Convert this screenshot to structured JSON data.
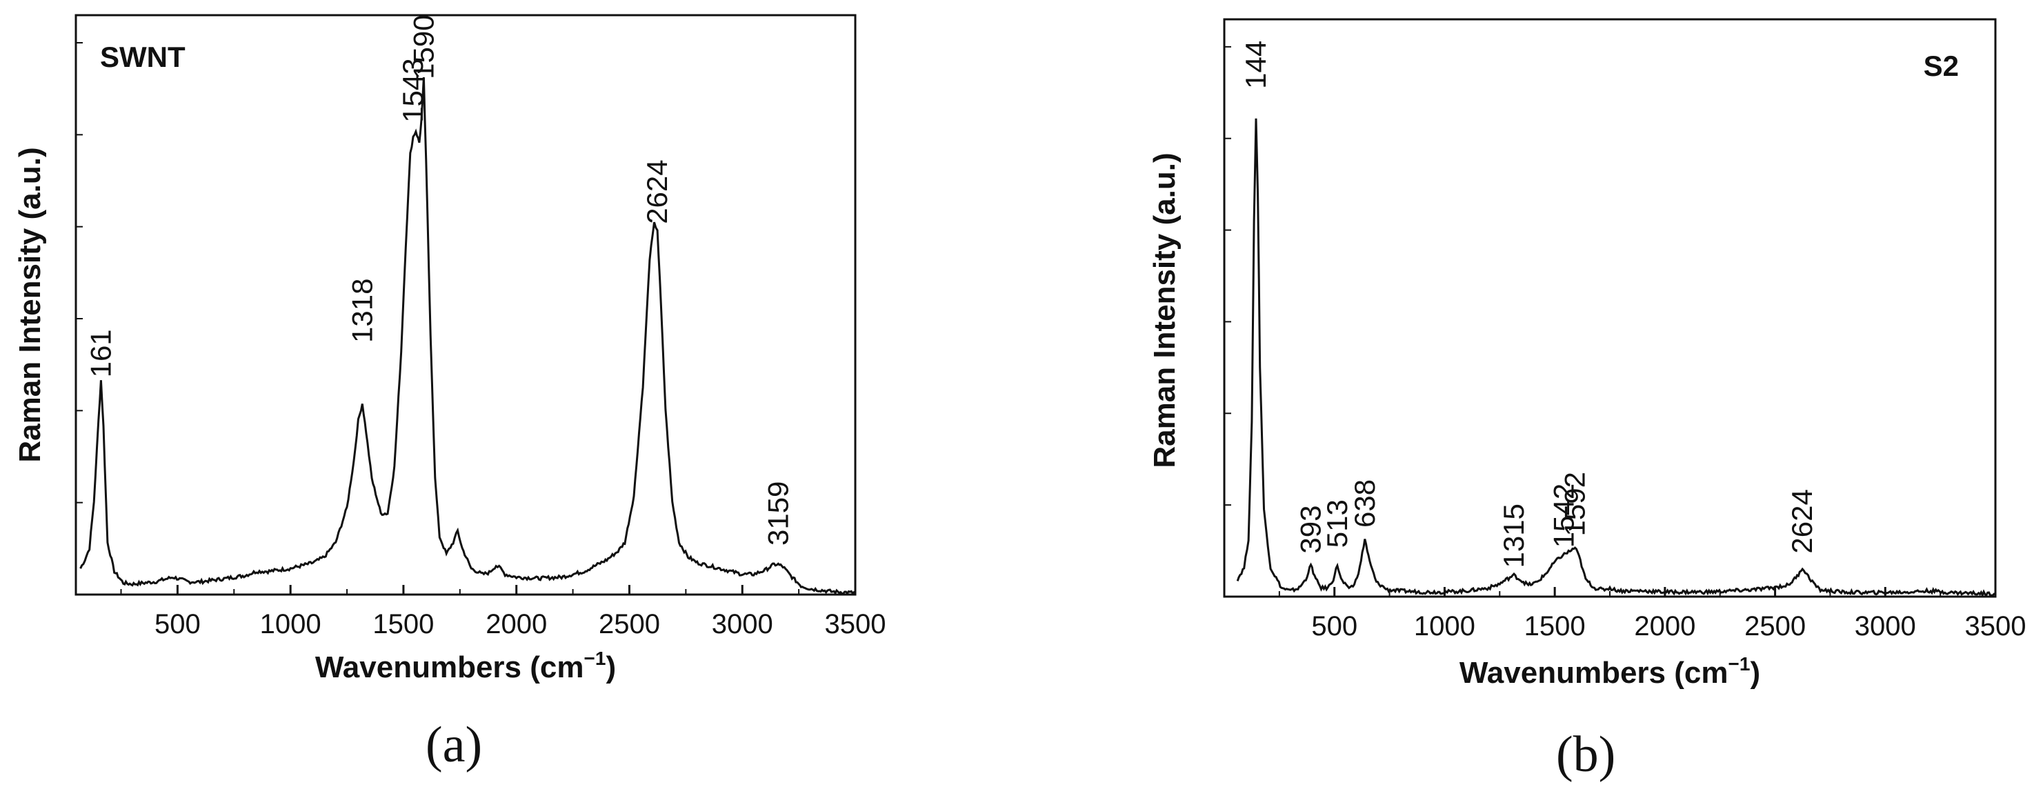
{
  "panels": [
    {
      "label": "(a)"
    },
    {
      "label": "(b)"
    }
  ],
  "chart_data": [
    {
      "type": "line",
      "title": "SWNT",
      "xlabel": "Wavenumbers (cm",
      "xlabel_sup": "−1",
      "xlabel_end": ")",
      "ylabel": "Raman Intensity (a.u.)",
      "xlim": [
        50,
        3500
      ],
      "ylim": [
        0,
        1
      ],
      "xticks": [
        500,
        1000,
        1500,
        2000,
        2500,
        3000,
        3500
      ],
      "y_ticks_labeled": false,
      "line_color": "#111111",
      "peak_labels": [
        {
          "text": "161",
          "x": 161,
          "y": 0.365
        },
        {
          "text": "1318",
          "x": 1318,
          "y": 0.425
        },
        {
          "text": "1543",
          "x": 1543,
          "y": 0.805
        },
        {
          "text": "1590",
          "x": 1590,
          "y": 0.88
        },
        {
          "text": "2624",
          "x": 2624,
          "y": 0.63
        },
        {
          "text": "3159",
          "x": 3159,
          "y": 0.075
        }
      ],
      "series": [
        {
          "x": [
            70,
            90,
            110,
            130,
            150,
            161,
            172,
            190,
            220,
            260,
            300,
            400,
            480,
            550,
            600,
            700,
            800,
            850,
            900,
            1000,
            1100,
            1150,
            1200,
            1250,
            1280,
            1300,
            1318,
            1335,
            1360,
            1400,
            1430,
            1460,
            1490,
            1510,
            1530,
            1543,
            1555,
            1570,
            1580,
            1590,
            1600,
            1620,
            1640,
            1660,
            1690,
            1720,
            1740,
            1760,
            1800,
            1850,
            1880,
            1910,
            1930,
            1950,
            2000,
            2100,
            2200,
            2300,
            2400,
            2450,
            2480,
            2520,
            2560,
            2590,
            2610,
            2624,
            2640,
            2660,
            2690,
            2720,
            2760,
            2800,
            2850,
            2900,
            3000,
            3050,
            3100,
            3140,
            3159,
            3180,
            3220,
            3260,
            3300,
            3400,
            3500
          ],
          "y": [
            0.045,
            0.06,
            0.08,
            0.16,
            0.3,
            0.37,
            0.29,
            0.09,
            0.04,
            0.02,
            0.018,
            0.022,
            0.03,
            0.022,
            0.022,
            0.027,
            0.033,
            0.04,
            0.04,
            0.045,
            0.055,
            0.065,
            0.09,
            0.15,
            0.23,
            0.3,
            0.33,
            0.28,
            0.2,
            0.14,
            0.14,
            0.22,
            0.42,
            0.6,
            0.76,
            0.79,
            0.8,
            0.78,
            0.82,
            0.89,
            0.75,
            0.45,
            0.2,
            0.1,
            0.07,
            0.09,
            0.11,
            0.08,
            0.045,
            0.035,
            0.038,
            0.05,
            0.045,
            0.035,
            0.03,
            0.028,
            0.03,
            0.04,
            0.06,
            0.075,
            0.09,
            0.17,
            0.36,
            0.58,
            0.64,
            0.63,
            0.5,
            0.32,
            0.16,
            0.09,
            0.065,
            0.055,
            0.05,
            0.045,
            0.035,
            0.035,
            0.042,
            0.052,
            0.052,
            0.048,
            0.03,
            0.015,
            0.01,
            0.005,
            0.003
          ]
        }
      ]
    },
    {
      "type": "line",
      "title": "S2",
      "xlabel": "Wavenumbers (cm",
      "xlabel_sup": "−1",
      "xlabel_end": ")",
      "ylabel": "Raman Intensity (a.u.)",
      "xlim": [
        0,
        3500
      ],
      "ylim": [
        0,
        1
      ],
      "xticks": [
        500,
        1000,
        1500,
        2000,
        2500,
        3000,
        3500
      ],
      "y_ticks_labeled": false,
      "line_color": "#111111",
      "peak_labels": [
        {
          "text": "144",
          "x": 144,
          "y": 0.87
        },
        {
          "text": "393",
          "x": 393,
          "y": 0.065
        },
        {
          "text": "513",
          "x": 513,
          "y": 0.075
        },
        {
          "text": "638",
          "x": 638,
          "y": 0.11
        },
        {
          "text": "1315",
          "x": 1315,
          "y": 0.04
        },
        {
          "text": "1542",
          "x": 1542,
          "y": 0.075
        },
        {
          "text": "1592",
          "x": 1592,
          "y": 0.095
        },
        {
          "text": "2624",
          "x": 2624,
          "y": 0.065
        }
      ],
      "series": [
        {
          "x": [
            60,
            90,
            110,
            125,
            135,
            144,
            152,
            162,
            180,
            210,
            260,
            300,
            340,
            370,
            393,
            415,
            440,
            470,
            495,
            513,
            530,
            560,
            590,
            615,
            638,
            660,
            690,
            740,
            800,
            900,
            1000,
            1100,
            1200,
            1250,
            1290,
            1315,
            1340,
            1380,
            1420,
            1460,
            1500,
            1530,
            1550,
            1575,
            1592,
            1610,
            1640,
            1680,
            1720,
            1750,
            1770,
            1800,
            1900,
            2000,
            2100,
            2200,
            2300,
            2400,
            2480,
            2560,
            2600,
            2624,
            2650,
            2700,
            2800,
            2900,
            3000,
            3100,
            3200,
            3300,
            3400,
            3500
          ],
          "y": [
            0.03,
            0.05,
            0.1,
            0.3,
            0.65,
            0.83,
            0.7,
            0.4,
            0.15,
            0.05,
            0.015,
            0.01,
            0.015,
            0.03,
            0.055,
            0.03,
            0.015,
            0.015,
            0.03,
            0.055,
            0.03,
            0.015,
            0.02,
            0.05,
            0.1,
            0.06,
            0.025,
            0.012,
            0.01,
            0.008,
            0.008,
            0.01,
            0.015,
            0.022,
            0.032,
            0.037,
            0.03,
            0.02,
            0.025,
            0.04,
            0.06,
            0.07,
            0.075,
            0.08,
            0.085,
            0.07,
            0.03,
            0.015,
            0.012,
            0.015,
            0.012,
            0.01,
            0.01,
            0.008,
            0.008,
            0.008,
            0.01,
            0.012,
            0.015,
            0.02,
            0.035,
            0.05,
            0.035,
            0.012,
            0.008,
            0.007,
            0.007,
            0.008,
            0.01,
            0.007,
            0.006,
            0.005
          ]
        }
      ]
    }
  ]
}
